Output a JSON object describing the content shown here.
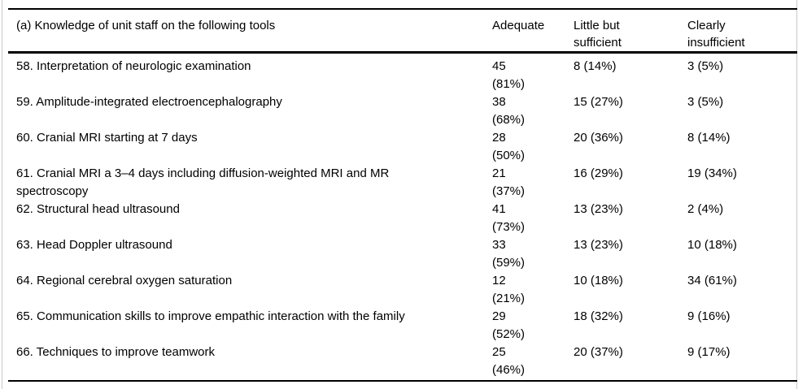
{
  "colors": {
    "background": "#ffffff",
    "text": "#000000",
    "rule": "#000000",
    "side_border": "#c9c9c9"
  },
  "table": {
    "header": {
      "topic": "(a) Knowledge of unit staff on the following tools",
      "adequate": "Adequate",
      "little_but_sufficient": "Little but sufficient",
      "clearly_insufficient": "Clearly insufficient"
    },
    "rows": [
      {
        "label": "58. Interpretation of neurologic examination",
        "adequate_n": "45",
        "adequate_pct": "(81%)",
        "little_but_sufficient": "8 (14%)",
        "clearly_insufficient": "3 (5%)"
      },
      {
        "label": "59. Amplitude-integrated electroencephalography",
        "adequate_n": "38",
        "adequate_pct": "(68%)",
        "little_but_sufficient": "15 (27%)",
        "clearly_insufficient": "3 (5%)"
      },
      {
        "label": "60. Cranial MRI starting at 7 days",
        "adequate_n": "28",
        "adequate_pct": "(50%)",
        "little_but_sufficient": "20 (36%)",
        "clearly_insufficient": "8 (14%)"
      },
      {
        "label": "61. Cranial MRI a 3–4 days including diffusion-weighted MRI and MR spectroscopy",
        "adequate_n": "21",
        "adequate_pct": "(37%)",
        "little_but_sufficient": "16 (29%)",
        "clearly_insufficient": "19 (34%)"
      },
      {
        "label": "62. Structural head ultrasound",
        "adequate_n": "41",
        "adequate_pct": "(73%)",
        "little_but_sufficient": "13 (23%)",
        "clearly_insufficient": "2 (4%)"
      },
      {
        "label": "63. Head Doppler ultrasound",
        "adequate_n": "33",
        "adequate_pct": "(59%)",
        "little_but_sufficient": "13 (23%)",
        "clearly_insufficient": "10 (18%)"
      },
      {
        "label": "64. Regional cerebral oxygen saturation",
        "adequate_n": "12",
        "adequate_pct": "(21%)",
        "little_but_sufficient": "10 (18%)",
        "clearly_insufficient": "34 (61%)"
      },
      {
        "label": "65. Communication skills to improve empathic interaction with the family",
        "adequate_n": "29",
        "adequate_pct": "(52%)",
        "little_but_sufficient": "18 (32%)",
        "clearly_insufficient": "9 (16%)"
      },
      {
        "label": "66. Techniques to improve teamwork",
        "adequate_n": "25",
        "adequate_pct": "(46%)",
        "little_but_sufficient": "20 (37%)",
        "clearly_insufficient": "9 (17%)"
      }
    ]
  }
}
